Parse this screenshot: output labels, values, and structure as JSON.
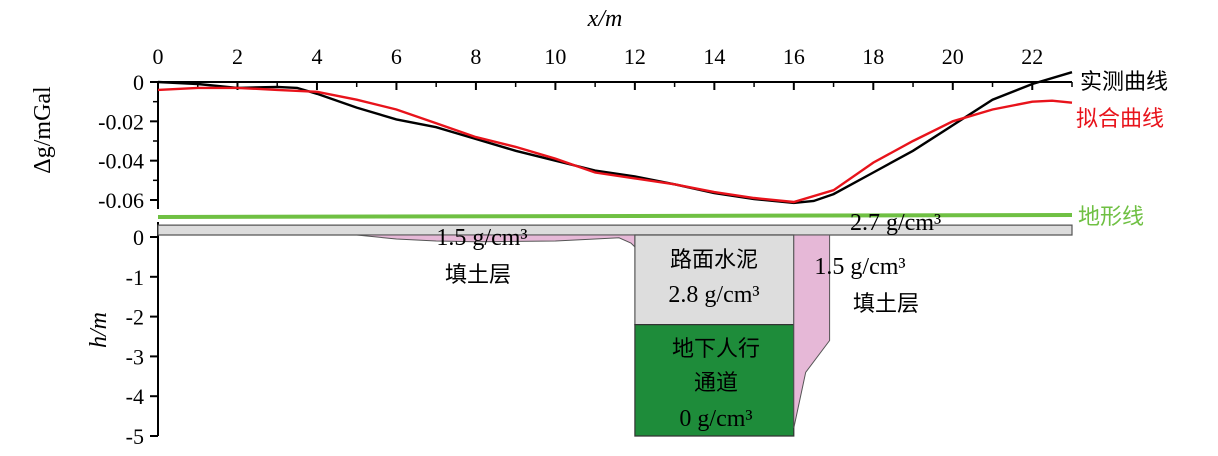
{
  "chart_data": [
    {
      "type": "line",
      "xlabel": "x/m",
      "ylabel": "Δg/mGal",
      "xlim": [
        0,
        23
      ],
      "ylim": [
        -0.065,
        0.002
      ],
      "x_ticks": [
        "0",
        "2",
        "4",
        "6",
        "8",
        "10",
        "12",
        "14",
        "16",
        "18",
        "20",
        "22"
      ],
      "y_ticks": [
        "0",
        "-0.02",
        "-0.04",
        "-0.06"
      ],
      "series": [
        {
          "name": "实测曲线",
          "color": "#000000",
          "x": [
            0,
            1,
            2,
            3,
            3.5,
            4,
            5,
            6,
            7,
            8,
            9,
            10,
            11,
            12,
            13,
            14,
            15,
            16,
            16.5,
            17,
            18,
            19,
            20,
            21,
            22,
            23
          ],
          "y": [
            0,
            -0.001,
            -0.003,
            -0.0025,
            -0.003,
            -0.006,
            -0.013,
            -0.019,
            -0.023,
            -0.029,
            -0.035,
            -0.04,
            -0.045,
            -0.048,
            -0.052,
            -0.0565,
            -0.0595,
            -0.0615,
            -0.0605,
            -0.057,
            -0.046,
            -0.035,
            -0.022,
            -0.009,
            -0.001,
            0.005
          ]
        },
        {
          "name": "拟合曲线",
          "color": "#e8131b",
          "x": [
            0,
            1,
            2,
            3,
            4,
            5,
            6,
            7,
            8,
            9,
            10,
            11,
            12,
            13,
            14,
            15,
            16,
            17,
            18,
            19,
            20,
            21,
            22,
            22.5,
            23
          ],
          "y": [
            -0.004,
            -0.003,
            -0.003,
            -0.004,
            -0.005,
            -0.009,
            -0.014,
            -0.021,
            -0.028,
            -0.033,
            -0.039,
            -0.046,
            -0.049,
            -0.052,
            -0.056,
            -0.059,
            -0.061,
            -0.055,
            -0.041,
            -0.03,
            -0.02,
            -0.014,
            -0.01,
            -0.0095,
            -0.0105
          ]
        }
      ]
    },
    {
      "type": "area",
      "ylabel": "h/m",
      "ylim": [
        -5,
        0.4
      ],
      "y_ticks": [
        "0",
        "-1",
        "-2",
        "-3",
        "-4",
        "-5"
      ],
      "terrain_label": "地形线",
      "terrain_color": "#6fc043",
      "layers": [
        {
          "name": "top_layer",
          "density_label": "2.7 g/cm³",
          "color": "#dcdcdc",
          "x": [
            0,
            23
          ],
          "top_y": [
            0.3,
            0.3
          ],
          "bottom_y": [
            0.05,
            0.05
          ]
        },
        {
          "name": "fill_left",
          "density_label": "1.5 g/cm³",
          "material_label": "填土层",
          "color": "#e6b8d7",
          "x": [
            5,
            6,
            7,
            8,
            9,
            10,
            11,
            11.6,
            11.9,
            12
          ],
          "top_y": [
            0.05,
            0.05,
            0.05,
            0.05,
            0.05,
            0.05,
            0.05,
            0.05,
            0.05,
            0.05
          ],
          "bottom_y": [
            0.05,
            -0.05,
            -0.1,
            -0.12,
            -0.11,
            -0.1,
            -0.05,
            -0.02,
            -0.15,
            -0.25
          ]
        },
        {
          "name": "road_cement",
          "material_label": "路面水泥",
          "density_label": "2.8 g/cm³",
          "color": "#dddddd",
          "x": [
            12,
            16
          ],
          "top_y": [
            0.05,
            0.05
          ],
          "bottom_y": [
            -2.2,
            -2.2
          ]
        },
        {
          "name": "tunnel",
          "title_line1": "地下人行",
          "title_line2": "通道",
          "density_label": "0 g/cm³",
          "color": "#1e8c3a",
          "x": [
            12,
            16
          ],
          "top_y": [
            -2.2,
            -2.2
          ],
          "bottom_y": [
            -5,
            -5
          ]
        },
        {
          "name": "fill_right",
          "density_label": "1.5 g/cm³",
          "material_label": "填土层",
          "color": "#e6b8d7",
          "x": [
            16,
            16.9,
            16.9,
            16.3,
            16
          ],
          "top_y": [
            0.05,
            0.05,
            -2.6,
            -3.4,
            -4.8
          ],
          "bottom_y": [
            -5,
            -5,
            -5,
            -5,
            -5
          ]
        }
      ]
    }
  ]
}
